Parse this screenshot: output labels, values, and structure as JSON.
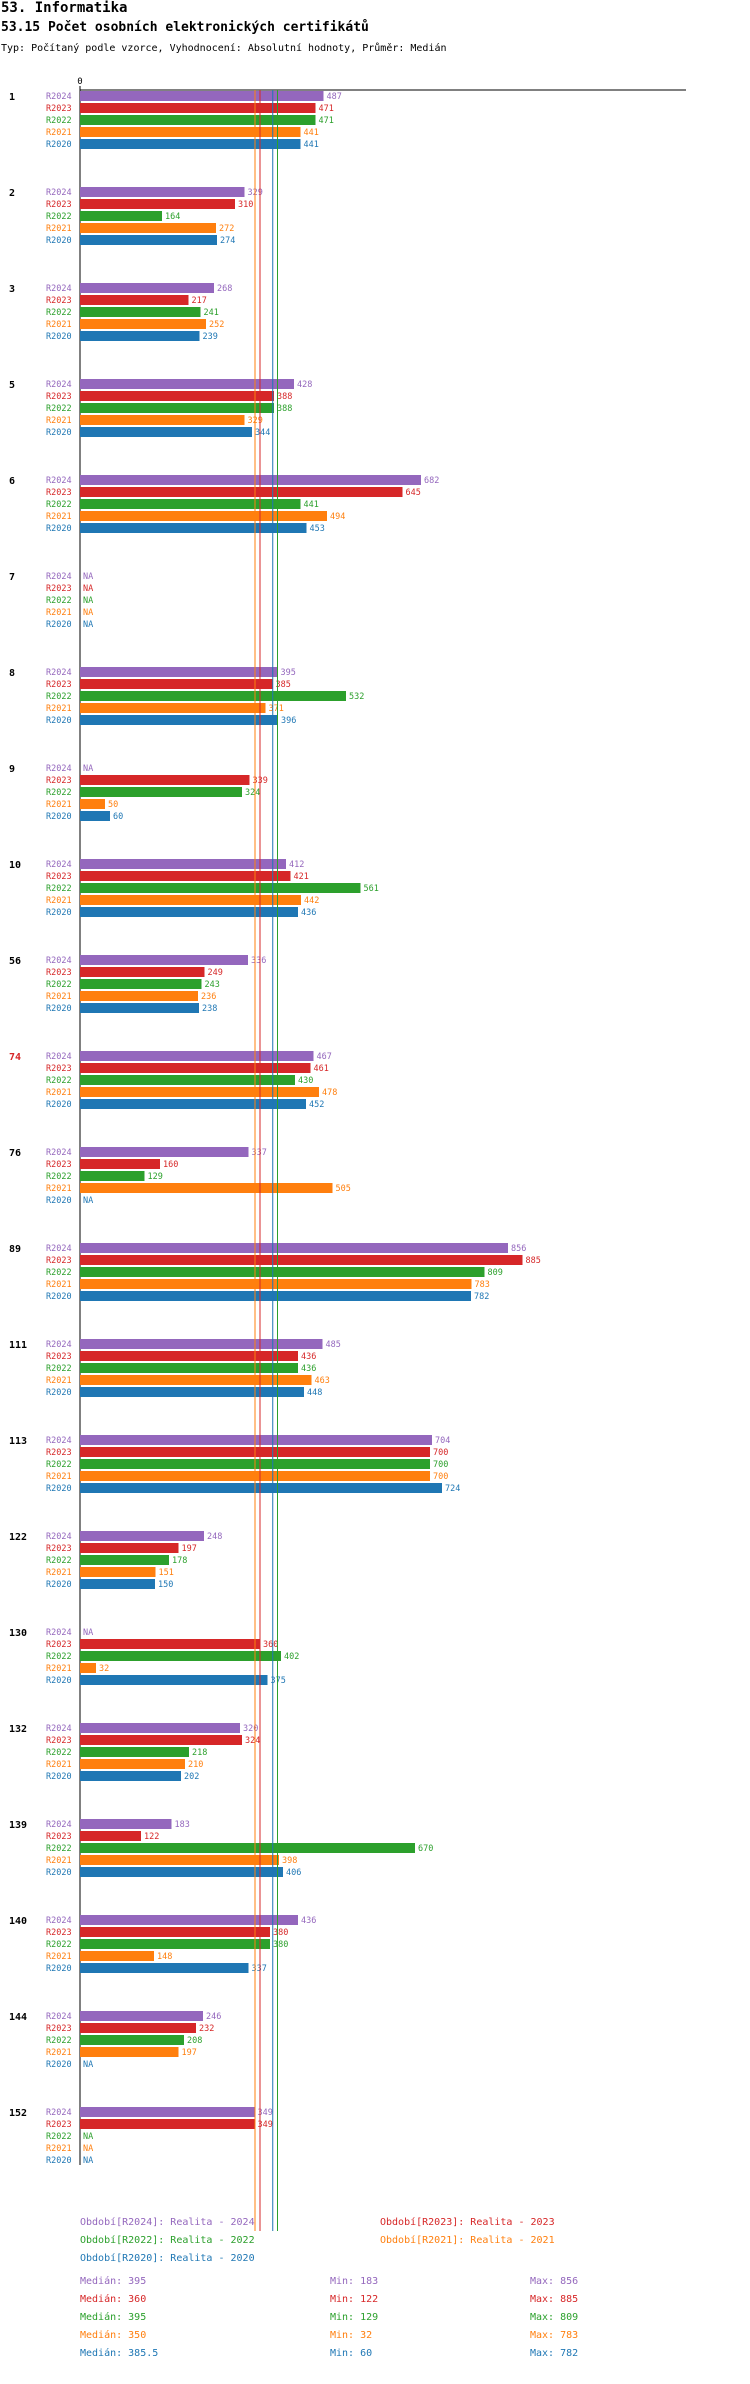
{
  "header": {
    "title": "53. Informatika",
    "subtitle": "53.15 Počet osobních elektronických certifikátů",
    "meta": "Typ: Počítaný podle vzorce, Vyhodnocení: Absolutní hodnoty, Průměr: Medián"
  },
  "colors": {
    "R2024": "#9467bd",
    "R2023": "#d62728",
    "R2022": "#2ca02c",
    "R2021": "#ff7f0e",
    "R2020": "#1f77b4",
    "highlight": "#d62728"
  },
  "chart_data": {
    "type": "bar",
    "orientation": "horizontal",
    "title": "53.15 Počet osobních elektronických certifikátů",
    "x_tick_labels": [
      "0"
    ],
    "xlim": [
      0,
      920
    ],
    "series_names": [
      "R2024",
      "R2023",
      "R2022",
      "R2021",
      "R2020"
    ],
    "na_label": "NA",
    "groups": [
      {
        "label": "1",
        "highlight": false,
        "values": [
          487,
          471,
          471,
          441,
          441
        ]
      },
      {
        "label": "2",
        "highlight": false,
        "values": [
          329,
          310,
          164,
          272,
          274
        ]
      },
      {
        "label": "3",
        "highlight": false,
        "values": [
          268,
          217,
          241,
          252,
          239
        ]
      },
      {
        "label": "5",
        "highlight": false,
        "values": [
          428,
          388,
          388,
          329,
          344
        ]
      },
      {
        "label": "6",
        "highlight": false,
        "values": [
          682,
          645,
          441,
          494,
          453
        ]
      },
      {
        "label": "7",
        "highlight": false,
        "values": [
          null,
          null,
          null,
          null,
          null
        ]
      },
      {
        "label": "8",
        "highlight": false,
        "values": [
          395,
          385,
          532,
          371,
          396
        ]
      },
      {
        "label": "9",
        "highlight": false,
        "values": [
          null,
          339,
          324,
          50,
          60
        ]
      },
      {
        "label": "10",
        "highlight": false,
        "values": [
          412,
          421,
          561,
          442,
          436
        ]
      },
      {
        "label": "56",
        "highlight": false,
        "values": [
          336,
          249,
          243,
          236,
          238
        ]
      },
      {
        "label": "74",
        "highlight": true,
        "values": [
          467,
          461,
          430,
          478,
          452
        ]
      },
      {
        "label": "76",
        "highlight": false,
        "values": [
          337,
          160,
          129,
          505,
          null
        ]
      },
      {
        "label": "89",
        "highlight": false,
        "values": [
          856,
          885,
          809,
          783,
          782
        ]
      },
      {
        "label": "111",
        "highlight": false,
        "values": [
          485,
          436,
          436,
          463,
          448
        ]
      },
      {
        "label": "113",
        "highlight": false,
        "values": [
          704,
          700,
          700,
          700,
          724
        ]
      },
      {
        "label": "122",
        "highlight": false,
        "values": [
          248,
          197,
          178,
          151,
          150
        ]
      },
      {
        "label": "130",
        "highlight": false,
        "values": [
          null,
          360,
          402,
          32,
          375
        ]
      },
      {
        "label": "132",
        "highlight": false,
        "values": [
          320,
          324,
          218,
          210,
          202
        ]
      },
      {
        "label": "139",
        "highlight": false,
        "values": [
          183,
          122,
          670,
          398,
          406
        ]
      },
      {
        "label": "140",
        "highlight": false,
        "values": [
          436,
          380,
          380,
          148,
          337
        ]
      },
      {
        "label": "144",
        "highlight": false,
        "values": [
          246,
          232,
          208,
          197,
          null
        ]
      },
      {
        "label": "152",
        "highlight": false,
        "values": [
          349,
          349,
          null,
          null,
          null
        ]
      }
    ],
    "median_lines": [
      {
        "series": "R2024",
        "value": 395
      },
      {
        "series": "R2023",
        "value": 360
      },
      {
        "series": "R2022",
        "value": 395
      },
      {
        "series": "R2021",
        "value": 350
      },
      {
        "series": "R2020",
        "value": 385.5
      }
    ],
    "legend": [
      {
        "series": "R2024",
        "label": "Období[R2024]: Realita - 2024"
      },
      {
        "series": "R2023",
        "label": "Období[R2023]: Realita - 2023"
      },
      {
        "series": "R2022",
        "label": "Období[R2022]: Realita - 2022"
      },
      {
        "series": "R2021",
        "label": "Období[R2021]: Realita - 2021"
      },
      {
        "series": "R2020",
        "label": "Období[R2020]: Realita - 2020"
      }
    ],
    "stats": [
      {
        "series": "R2024",
        "median": "Medián: 395",
        "min": "Min: 183",
        "max": "Max: 856"
      },
      {
        "series": "R2023",
        "median": "Medián: 360",
        "min": "Min: 122",
        "max": "Max: 885"
      },
      {
        "series": "R2022",
        "median": "Medián: 395",
        "min": "Min: 129",
        "max": "Max: 809"
      },
      {
        "series": "R2021",
        "median": "Medián: 350",
        "min": "Min: 32",
        "max": "Max: 783"
      },
      {
        "series": "R2020",
        "median": "Medián: 385.5",
        "min": "Min: 60",
        "max": "Max: 782"
      }
    ]
  }
}
